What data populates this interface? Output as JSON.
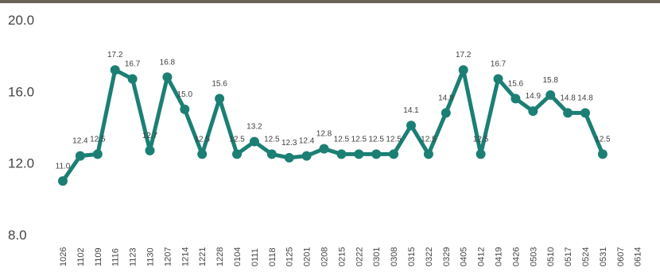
{
  "chart_data": {
    "type": "line",
    "title": "",
    "xlabel": "",
    "ylabel": "",
    "ylim": [
      8.0,
      20.0
    ],
    "yticks": [
      "8.0",
      "12.0",
      "16.0",
      "20.0"
    ],
    "grid": false,
    "legend": "none",
    "line_color": "#1b7f74",
    "x": [
      "1026",
      "1102",
      "1109",
      "1116",
      "1123",
      "1130",
      "1207",
      "1214",
      "1221",
      "1228",
      "0104",
      "0111",
      "0118",
      "0125",
      "0201",
      "0208",
      "0215",
      "0222",
      "0301",
      "0308",
      "0315",
      "0322",
      "0329",
      "0405",
      "0412",
      "0419",
      "0426",
      "0503",
      "0510",
      "0517",
      "0524",
      "0531",
      "0607",
      "0614"
    ],
    "series": [
      {
        "values": [
          11.0,
          12.4,
          12.5,
          17.2,
          16.7,
          12.7,
          16.8,
          15.0,
          12.5,
          15.6,
          12.5,
          13.2,
          12.5,
          12.3,
          12.4,
          12.8,
          12.5,
          12.5,
          12.5,
          12.5,
          14.1,
          12.5,
          14.8,
          17.2,
          12.5,
          16.7,
          15.6,
          14.9,
          15.8,
          14.8,
          14.8,
          12.5,
          null,
          null
        ],
        "labels": [
          "11.0",
          "12.4",
          "12.5",
          "17.2",
          "16.7",
          "12.7",
          "16.8",
          "15.0",
          "12.5",
          "15.6",
          "12.5",
          "13.2",
          "12.5",
          "12.3",
          "12.4",
          "12.8",
          "12.5",
          "12.5",
          "12.5",
          "12.5",
          "14.1",
          "12.5",
          "14.8",
          "17.2",
          "12.5",
          "16.7",
          "15.6",
          "14.9",
          "15.8",
          "14.8",
          "14.8",
          "12.5",
          "",
          ""
        ]
      }
    ]
  }
}
